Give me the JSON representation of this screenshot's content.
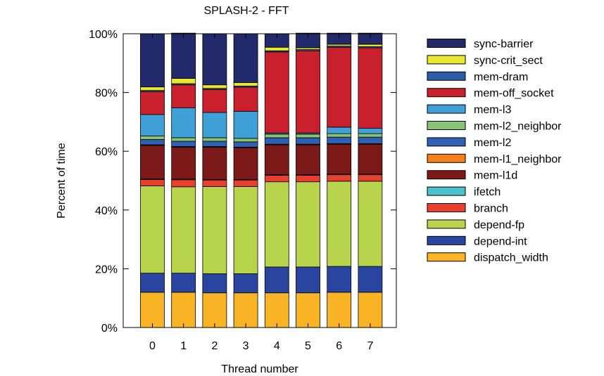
{
  "chart_data": {
    "type": "bar",
    "stacked": true,
    "title": "SPLASH-2  -  FFT",
    "xlabel": "Thread number",
    "ylabel": "Percent of time",
    "categories": [
      "0",
      "1",
      "2",
      "3",
      "4",
      "5",
      "6",
      "7"
    ],
    "ylim": [
      0,
      100
    ],
    "yticks": [
      0,
      20,
      40,
      60,
      80,
      100
    ],
    "ytick_labels": [
      "0%",
      "20%",
      "40%",
      "60%",
      "80%",
      "100%"
    ],
    "series": [
      {
        "name": "dispatch_width",
        "color": "#f8b424",
        "values": [
          12.0,
          12.0,
          11.8,
          11.8,
          11.8,
          11.8,
          12.0,
          12.0
        ]
      },
      {
        "name": "depend-int",
        "color": "#2a45a0",
        "values": [
          6.5,
          6.5,
          6.5,
          6.5,
          8.8,
          8.8,
          8.8,
          8.8
        ]
      },
      {
        "name": "depend-fp",
        "color": "#b8d44c",
        "values": [
          29.7,
          29.4,
          29.7,
          29.7,
          29.0,
          29.0,
          29.0,
          29.0
        ]
      },
      {
        "name": "branch",
        "color": "#e8402c",
        "values": [
          2.2,
          2.4,
          2.2,
          2.2,
          2.2,
          2.2,
          2.2,
          2.2
        ]
      },
      {
        "name": "ifetch",
        "color": "#4cc0cc",
        "values": [
          0.2,
          0.2,
          0.2,
          0.2,
          0.2,
          0.2,
          0.2,
          0.2
        ]
      },
      {
        "name": "mem-l1d",
        "color": "#7c1a1a",
        "values": [
          11.4,
          10.9,
          11.0,
          10.8,
          10.2,
          10.2,
          10.2,
          10.2
        ]
      },
      {
        "name": "mem-l1_neighbor",
        "color": "#f4801c",
        "values": [
          0.2,
          0.2,
          0.2,
          0.2,
          0.2,
          0.2,
          0.2,
          0.2
        ]
      },
      {
        "name": "mem-l2",
        "color": "#3060b4",
        "values": [
          1.8,
          1.8,
          1.8,
          1.8,
          2.2,
          2.2,
          2.2,
          2.2
        ]
      },
      {
        "name": "mem-l2_neighbor",
        "color": "#88c474",
        "values": [
          1.2,
          1.2,
          1.2,
          1.2,
          1.2,
          1.2,
          1.2,
          1.2
        ]
      },
      {
        "name": "mem-l3",
        "color": "#40a0d8",
        "values": [
          7.3,
          10.2,
          8.6,
          9.2,
          0.4,
          0.4,
          2.2,
          1.8
        ]
      },
      {
        "name": "mem-off_socket",
        "color": "#c8202c",
        "values": [
          7.8,
          7.8,
          7.8,
          8.2,
          27.6,
          28.0,
          27.2,
          27.4
        ]
      },
      {
        "name": "mem-dram",
        "color": "#2c5ca8",
        "values": [
          0.4,
          0.4,
          0.4,
          0.4,
          0.4,
          0.4,
          0.4,
          0.4
        ]
      },
      {
        "name": "sync-crit_sect",
        "color": "#e8e830",
        "values": [
          1.2,
          1.8,
          1.2,
          1.2,
          1.2,
          0.6,
          0.6,
          0.8
        ]
      },
      {
        "name": "sync-barrier",
        "color": "#222a6c",
        "values": [
          18.1,
          15.4,
          17.4,
          16.6,
          4.6,
          5.0,
          3.8,
          3.8
        ]
      }
    ],
    "legend_position": "right",
    "grid": false
  }
}
